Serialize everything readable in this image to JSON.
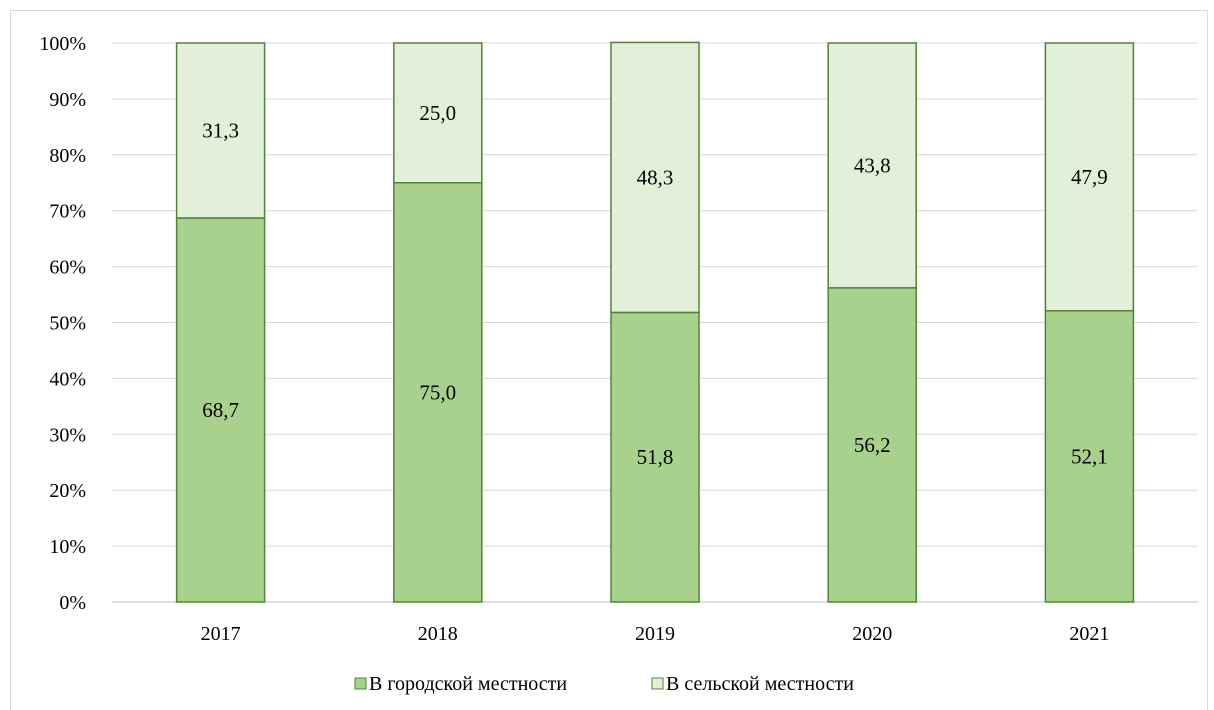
{
  "chart_data": {
    "type": "bar",
    "stacked": true,
    "categories": [
      "2017",
      "2018",
      "2019",
      "2020",
      "2021"
    ],
    "series": [
      {
        "name": "В городской местности",
        "values": [
          68.7,
          75.0,
          51.8,
          56.2,
          52.1
        ],
        "labels": [
          "68,7",
          "75,0",
          "51,8",
          "56,2",
          "52,1"
        ],
        "color": "#a9d18e"
      },
      {
        "name": "В сельской местности",
        "values": [
          31.3,
          25.0,
          48.3,
          43.8,
          47.9
        ],
        "labels": [
          "31,3",
          "25,0",
          "48,3",
          "43,8",
          "47,9"
        ],
        "color": "#e2f0d9"
      }
    ],
    "yticks": [
      "0%",
      "10%",
      "20%",
      "30%",
      "40%",
      "50%",
      "60%",
      "70%",
      "80%",
      "90%",
      "100%"
    ],
    "ylim": [
      0,
      100
    ],
    "grid": true,
    "legend_position": "bottom",
    "bar_border_color": "#548235",
    "title": "",
    "xlabel": "",
    "ylabel": ""
  }
}
